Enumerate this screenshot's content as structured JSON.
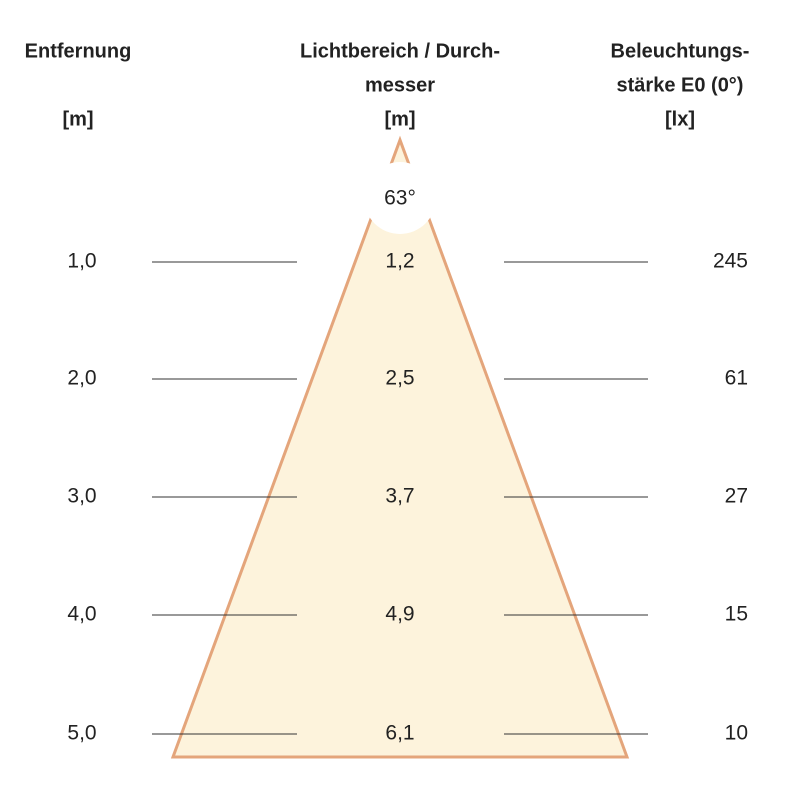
{
  "columns": [
    {
      "title": [
        "Entfernung"
      ],
      "unit": "[m]"
    },
    {
      "title": [
        "Lichtbereich / Durch-",
        "messer"
      ],
      "unit": "[m]"
    },
    {
      "title": [
        "Beleuchtungs-",
        "stärke E0 (0°)"
      ],
      "unit": "[lx]"
    }
  ],
  "beam_angle": "63°",
  "rows": [
    [
      "1,0",
      "1,2",
      "245"
    ],
    [
      "2,0",
      "2,5",
      "61"
    ],
    [
      "3,0",
      "3,7",
      "27"
    ],
    [
      "4,0",
      "4,9",
      "15"
    ],
    [
      "5,0",
      "6,1",
      "10"
    ]
  ]
}
